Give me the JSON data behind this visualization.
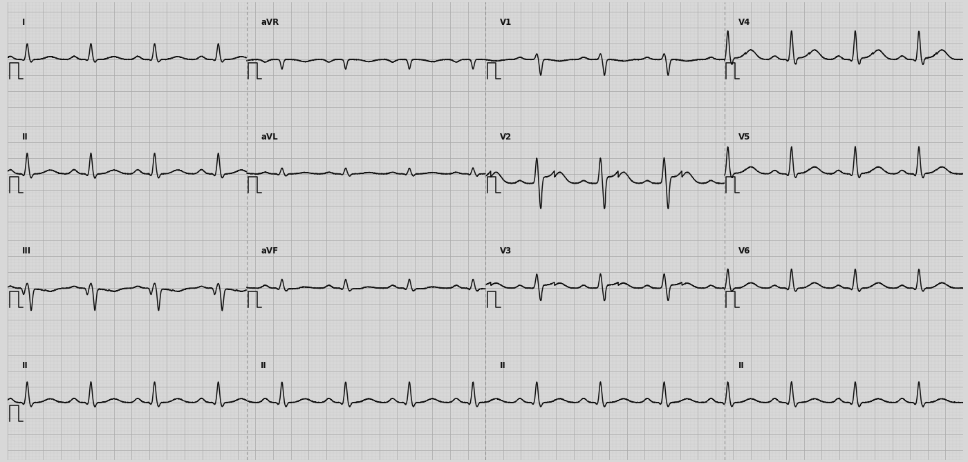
{
  "background_color": "#d8d8d8",
  "grid_major_color": "#aaaaaa",
  "grid_minor_color": "#c4c4c4",
  "line_color": "#111111",
  "line_width": 1.1,
  "fig_width": 14.0,
  "fig_height": 6.69,
  "dpi": 100,
  "label_fontsize": 8.5,
  "label_color": "#111111",
  "leads_params": {
    "I": {
      "r": 0.5,
      "q": 0.03,
      "s": 0.08,
      "p": 0.1,
      "tw": 0.09,
      "st": 0.0,
      "baseline": 0.0
    },
    "aVR": {
      "r": -0.3,
      "q": 0.0,
      "s": 0.0,
      "p": -0.08,
      "tw": -0.07,
      "st": 0.0,
      "baseline": 0.0
    },
    "V1": {
      "r": 0.18,
      "q": 0.0,
      "s": 0.5,
      "p": 0.07,
      "tw": -0.05,
      "st": 0.0,
      "baseline": 0.0
    },
    "V4": {
      "r": 0.9,
      "q": 0.05,
      "s": 0.15,
      "p": 0.11,
      "tw": 0.3,
      "st": 0.05,
      "baseline": 0.0
    },
    "II": {
      "r": 0.65,
      "q": 0.06,
      "s": 0.13,
      "p": 0.13,
      "tw": 0.12,
      "st": 0.0,
      "baseline": 0.0
    },
    "aVL": {
      "r": 0.18,
      "q": 0.03,
      "s": 0.07,
      "p": 0.05,
      "tw": 0.04,
      "st": 0.0,
      "baseline": 0.0
    },
    "V2": {
      "r": 0.8,
      "q": 0.0,
      "s": 0.8,
      "p": 0.09,
      "tw": 0.35,
      "st": 0.2,
      "baseline": -0.3
    },
    "V5": {
      "r": 0.85,
      "q": 0.06,
      "s": 0.12,
      "p": 0.11,
      "tw": 0.22,
      "st": 0.02,
      "baseline": 0.0
    },
    "III": {
      "r": 0.15,
      "q": 0.2,
      "s": 0.7,
      "p": 0.06,
      "tw": -0.1,
      "st": -0.03,
      "baseline": 0.0
    },
    "aVF": {
      "r": 0.28,
      "q": 0.04,
      "s": 0.09,
      "p": 0.09,
      "tw": 0.04,
      "st": -0.02,
      "baseline": 0.0
    },
    "V3": {
      "r": 0.45,
      "q": 0.0,
      "s": 0.4,
      "p": 0.09,
      "tw": 0.16,
      "st": 0.1,
      "baseline": 0.0
    },
    "V6": {
      "r": 0.6,
      "q": 0.05,
      "s": 0.1,
      "p": 0.09,
      "tw": 0.17,
      "st": 0.0,
      "baseline": 0.0
    }
  },
  "row_lead_map": [
    [
      "I",
      "aVR",
      "V1",
      "V4"
    ],
    [
      "II",
      "aVL",
      "V2",
      "V5"
    ],
    [
      "III",
      "aVF",
      "V3",
      "V6"
    ]
  ],
  "rhythm_lead": "II",
  "rr_interval": 0.72,
  "total_duration": 10.8,
  "col_duration": 2.7,
  "fs": 500
}
